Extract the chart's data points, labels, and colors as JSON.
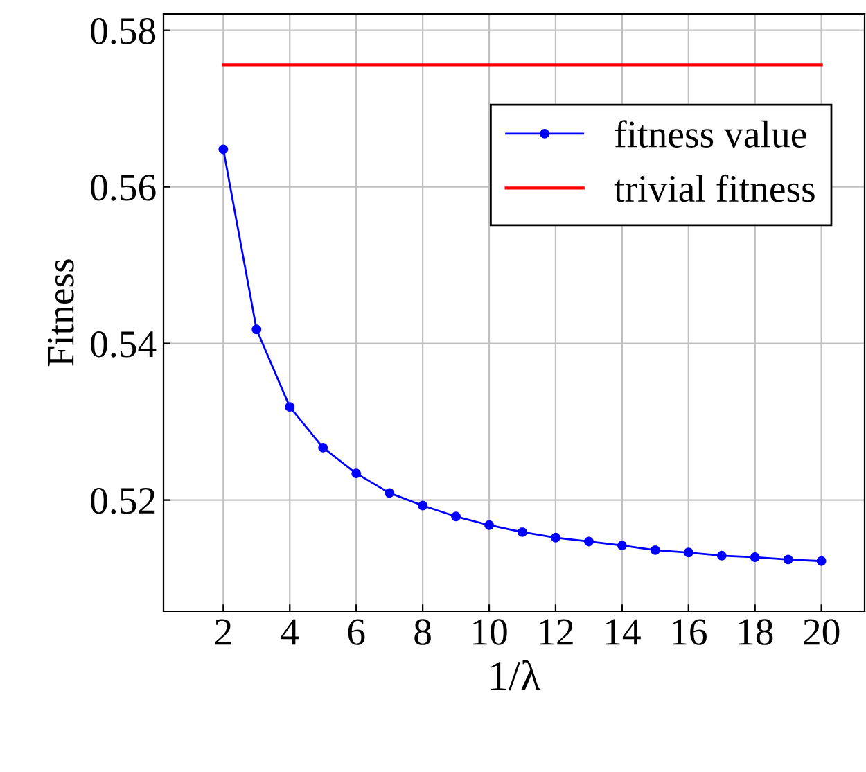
{
  "chart_data": {
    "type": "line",
    "xlabel": "1/λ",
    "ylabel": "Fitness",
    "series": [
      {
        "name": "fitness value",
        "color": "#0000ff",
        "marker": "circle",
        "x": [
          2,
          3,
          4,
          5,
          6,
          7,
          8,
          9,
          10,
          11,
          12,
          13,
          14,
          15,
          16,
          17,
          18,
          19,
          20
        ],
        "values": [
          0.5648,
          0.5418,
          0.5319,
          0.5267,
          0.5234,
          0.5209,
          0.5193,
          0.5179,
          0.5168,
          0.5159,
          0.5152,
          0.5147,
          0.5142,
          0.5136,
          0.5133,
          0.5129,
          0.5127,
          0.5124,
          0.5122
        ]
      },
      {
        "name": "trivial fitness",
        "color": "#ff0000",
        "marker": "none",
        "x": [
          2,
          20
        ],
        "values": [
          0.5756,
          0.5756
        ]
      }
    ],
    "xlim": [
      0.2,
      21.3
    ],
    "xticks": [
      2,
      4,
      6,
      8,
      10,
      12,
      14,
      16,
      18,
      20
    ],
    "ylim": [
      0.5058,
      0.5821
    ],
    "yticks": [
      0.52,
      0.54,
      0.56,
      0.58
    ],
    "grid": true,
    "legend": "top right"
  }
}
